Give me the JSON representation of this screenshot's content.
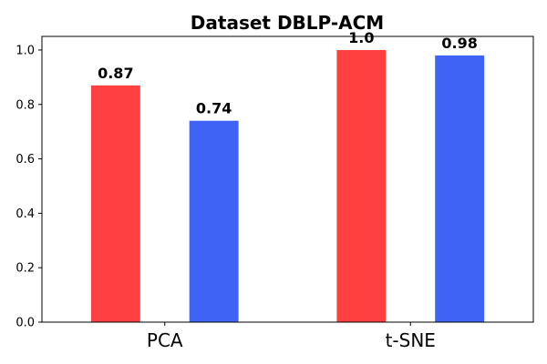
{
  "chart_data": {
    "type": "bar",
    "title": "Dataset DBLP-ACM",
    "xlabel": "",
    "ylabel": "",
    "categories": [
      "PCA",
      "t-SNE"
    ],
    "series": [
      {
        "color": "#ff4040",
        "values": [
          0.87,
          1.0
        ],
        "labels": [
          "0.87",
          "1.0"
        ]
      },
      {
        "color": "#3f64f5",
        "values": [
          0.74,
          0.98
        ],
        "labels": [
          "0.74",
          "0.98"
        ]
      }
    ],
    "ylim": [
      0,
      1.05
    ],
    "yticks": [
      0.0,
      0.2,
      0.4,
      0.6,
      0.8,
      1.0
    ],
    "ytick_labels": [
      "0.0",
      "0.2",
      "0.4",
      "0.6",
      "0.8",
      "1.0"
    ],
    "grid": false,
    "legend": "none"
  }
}
